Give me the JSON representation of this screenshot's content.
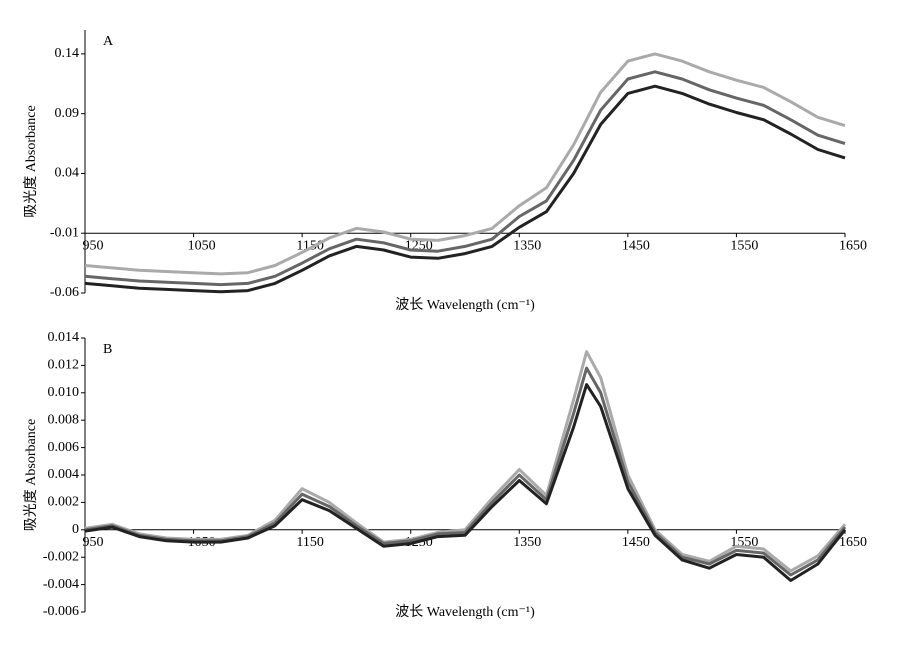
{
  "chart_data": [
    {
      "type": "line",
      "panel_label": "A",
      "ylabel": "吸光度 Absorbance",
      "xlabel": "波长 Wavelength (cm⁻¹)",
      "x": [
        950,
        975,
        1000,
        1025,
        1050,
        1075,
        1100,
        1125,
        1150,
        1175,
        1200,
        1225,
        1250,
        1275,
        1300,
        1325,
        1350,
        1375,
        1400,
        1425,
        1450,
        1475,
        1500,
        1525,
        1550,
        1575,
        1600,
        1625,
        1650
      ],
      "series": [
        {
          "color": "#aaaaaa",
          "values": [
            -0.037,
            -0.039,
            -0.041,
            -0.042,
            -0.043,
            -0.044,
            -0.043,
            -0.037,
            -0.026,
            -0.014,
            -0.006,
            -0.009,
            -0.015,
            -0.016,
            -0.012,
            -0.006,
            0.013,
            0.028,
            0.064,
            0.108,
            0.134,
            0.14,
            0.134,
            0.125,
            0.118,
            0.112,
            0.1,
            0.087,
            0.08
          ]
        },
        {
          "color": "#666666",
          "values": [
            -0.046,
            -0.048,
            -0.05,
            -0.051,
            -0.052,
            -0.053,
            -0.052,
            -0.046,
            -0.035,
            -0.023,
            -0.015,
            -0.018,
            -0.024,
            -0.025,
            -0.021,
            -0.015,
            0.004,
            0.017,
            0.051,
            0.093,
            0.119,
            0.125,
            0.119,
            0.11,
            0.103,
            0.097,
            0.085,
            0.072,
            0.065
          ]
        },
        {
          "color": "#222222",
          "values": [
            -0.052,
            -0.054,
            -0.056,
            -0.057,
            -0.058,
            -0.059,
            -0.058,
            -0.052,
            -0.041,
            -0.029,
            -0.021,
            -0.024,
            -0.03,
            -0.031,
            -0.027,
            -0.021,
            -0.005,
            0.008,
            0.04,
            0.081,
            0.107,
            0.113,
            0.107,
            0.098,
            0.091,
            0.085,
            0.073,
            0.06,
            0.053
          ]
        }
      ],
      "xlim": [
        950,
        1650
      ],
      "xticks": [
        950,
        1050,
        1150,
        1250,
        1350,
        1450,
        1550,
        1650
      ],
      "ylim": [
        -0.06,
        0.16
      ],
      "yticks": [
        -0.06,
        -0.01,
        0.04,
        0.09,
        0.14
      ],
      "xaxis_cross": -0.01
    },
    {
      "type": "line",
      "panel_label": "B",
      "ylabel": "吸光度 Absorbance",
      "xlabel": "波长 Wavelength (cm⁻¹)",
      "x": [
        950,
        975,
        1000,
        1025,
        1050,
        1075,
        1100,
        1125,
        1150,
        1175,
        1200,
        1225,
        1250,
        1275,
        1300,
        1325,
        1350,
        1375,
        1400,
        1412,
        1425,
        1450,
        1475,
        1500,
        1525,
        1550,
        1575,
        1600,
        1625,
        1650
      ],
      "series": [
        {
          "color": "#aaaaaa",
          "values": [
            0.0001,
            0.0004,
            -0.0003,
            -0.0006,
            -0.0007,
            -0.0007,
            -0.0004,
            0.0007,
            0.003,
            0.002,
            0.0005,
            -0.0009,
            -0.0007,
            -0.0002,
            0,
            0.0023,
            0.0044,
            0.0025,
            0.0095,
            0.013,
            0.0111,
            0.004,
            0,
            -0.0018,
            -0.0023,
            -0.0012,
            -0.0014,
            -0.003,
            -0.0019,
            0.0004
          ]
        },
        {
          "color": "#666666",
          "values": [
            0,
            0.0003,
            -0.0004,
            -0.0007,
            -0.0008,
            -0.0008,
            -0.0005,
            0.0005,
            0.0026,
            0.0017,
            0.0003,
            -0.001,
            -0.0008,
            -0.0003,
            -0.0002,
            0.002,
            0.004,
            0.0022,
            0.0085,
            0.0118,
            0.01,
            0.0035,
            -0.0002,
            -0.002,
            -0.0025,
            -0.0015,
            -0.0017,
            -0.0033,
            -0.0022,
            0.0002
          ]
        },
        {
          "color": "#222222",
          "values": [
            -0.0001,
            0.0002,
            -0.0005,
            -0.0008,
            -0.0009,
            -0.0009,
            -0.0006,
            0.0003,
            0.0022,
            0.0014,
            0.0001,
            -0.0012,
            -0.001,
            -0.0005,
            -0.0004,
            0.0017,
            0.0036,
            0.0019,
            0.0075,
            0.0106,
            0.009,
            0.003,
            -0.0004,
            -0.0022,
            -0.0028,
            -0.0018,
            -0.002,
            -0.0037,
            -0.0025,
            0
          ]
        }
      ],
      "xlim": [
        950,
        1650
      ],
      "xticks": [
        950,
        1050,
        1150,
        1250,
        1350,
        1450,
        1550,
        1650
      ],
      "ylim": [
        -0.006,
        0.014
      ],
      "yticks": [
        -0.006,
        -0.004,
        -0.002,
        0,
        0.002,
        0.004,
        0.006,
        0.008,
        {
          "value": 0.01,
          "label": "0.010"
        },
        0.012,
        0.014
      ],
      "xaxis_cross": 0
    }
  ]
}
